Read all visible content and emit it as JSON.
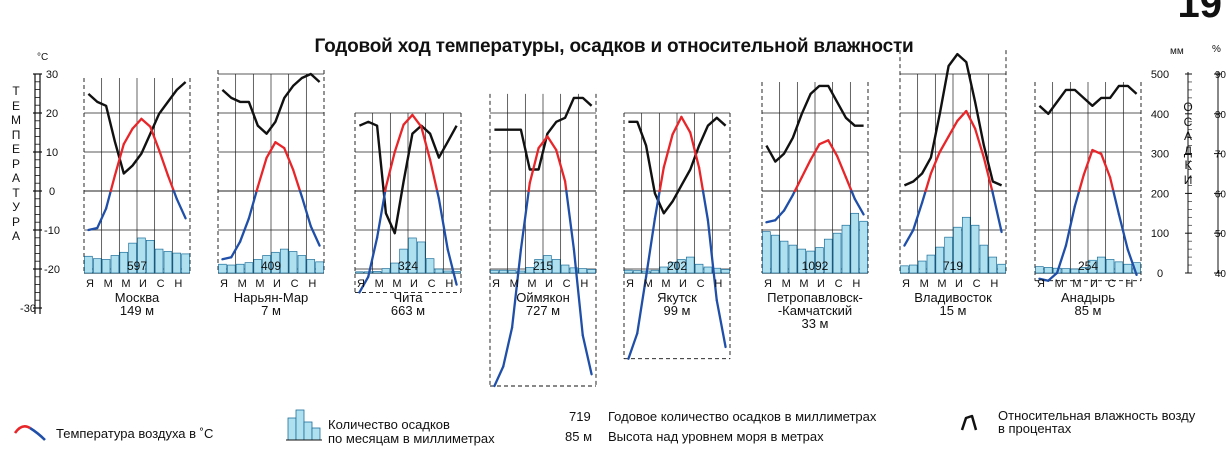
{
  "page_number": "19",
  "title": "Годовой ход температуры, осадков и относительной влажности",
  "left_axis": {
    "unit": "°C",
    "label": "ТЕМПЕРАТУРА",
    "ticks": [
      30,
      20,
      10,
      0,
      -10,
      -20,
      -30
    ]
  },
  "right_axis": {
    "precip_unit": "мм",
    "precip_label": "ОСАДКИ",
    "precip_ticks": [
      500,
      400,
      300,
      200,
      100,
      0
    ],
    "humidity_unit": "%",
    "humidity_ticks": [
      90,
      80,
      70,
      60,
      50,
      40
    ]
  },
  "month_letters": [
    "Я",
    "М",
    "М",
    "И",
    "С",
    "Н"
  ],
  "colors": {
    "temp_warm": "#e8262a",
    "temp_cold": "#1f4fa8",
    "humidity": "#111111",
    "precip_fill": "#aee0f0",
    "precip_stroke": "#1f6f9a"
  },
  "chart_data": {
    "type": "line",
    "x_unit": "month",
    "months": [
      1,
      2,
      3,
      4,
      5,
      6,
      7,
      8,
      9,
      10,
      11,
      12
    ],
    "stations": [
      {
        "name": "Москва",
        "elevation": "149 м",
        "annual_precip": "597",
        "temperature": [
          -10,
          -9.5,
          -4.5,
          4,
          12,
          16,
          18.5,
          16.5,
          10.5,
          4,
          -2,
          -7
        ],
        "precip_mm": [
          42,
          36,
          34,
          44,
          52,
          75,
          88,
          82,
          60,
          54,
          50,
          48
        ],
        "humidity": [
          85,
          83,
          82,
          73,
          65,
          67,
          70,
          75,
          80,
          83,
          86,
          88
        ]
      },
      {
        "name": "Нарьян-Мар",
        "elevation": "7 м",
        "annual_precip": "409",
        "temperature": [
          -17.5,
          -17,
          -13,
          -7,
          1,
          8.5,
          12.5,
          11,
          5.5,
          -1.5,
          -9,
          -14
        ],
        "precip_mm": [
          22,
          20,
          22,
          26,
          34,
          44,
          52,
          60,
          54,
          44,
          34,
          28
        ],
        "humidity": [
          86,
          84,
          83,
          83,
          77,
          75,
          78,
          84,
          87,
          89,
          90,
          88
        ]
      },
      {
        "name": "Чита",
        "elevation": "663 м",
        "annual_precip": "324",
        "temperature": [
          -26,
          -22,
          -12,
          1,
          10,
          17,
          19.5,
          16.5,
          8,
          -2,
          -15,
          -24
        ],
        "precip_mm": [
          3,
          3,
          4,
          11,
          25,
          60,
          88,
          78,
          36,
          10,
          5,
          4
        ],
        "humidity": [
          77,
          78,
          77,
          55,
          50,
          63,
          75,
          77,
          75,
          69,
          73,
          77
        ]
      },
      {
        "name": "Оймякон",
        "elevation": "727 м",
        "annual_precip": "215",
        "temperature": [
          -50,
          -45,
          -35,
          -15,
          2,
          11,
          14,
          10.5,
          2.5,
          -15,
          -37,
          -47
        ],
        "precip_mm": [
          7,
          7,
          6,
          5,
          14,
          34,
          44,
          34,
          20,
          13,
          11,
          9
        ],
        "humidity": [
          76,
          76,
          76,
          76,
          66,
          66,
          75,
          78,
          79,
          84,
          84,
          82
        ]
      },
      {
        "name": "Якутск",
        "elevation": "99 м",
        "annual_precip": "202",
        "temperature": [
          -43,
          -36.5,
          -22,
          -7,
          6,
          14.5,
          19,
          15,
          6,
          -7.5,
          -28,
          -40
        ],
        "precip_mm": [
          7,
          6,
          5,
          7,
          15,
          27,
          34,
          40,
          22,
          15,
          12,
          9
        ],
        "humidity": [
          78,
          78,
          72,
          60,
          55,
          58,
          62,
          66,
          72,
          77,
          79,
          77
        ]
      },
      {
        "name": "Петропавловск-\n-Камчатский",
        "elevation": "33 м",
        "annual_precip": "1092",
        "temperature": [
          -8,
          -7.5,
          -5,
          -1,
          3.5,
          8,
          12,
          13,
          9,
          3.5,
          -2,
          -6
        ],
        "precip_mm": [
          104,
          95,
          80,
          70,
          60,
          55,
          64,
          85,
          100,
          120,
          150,
          130
        ],
        "humidity": [
          72,
          68,
          70,
          74,
          80,
          85,
          87,
          87,
          83,
          79,
          77,
          77
        ]
      },
      {
        "name": "Владивосток",
        "elevation": "15 м",
        "annual_precip": "719",
        "temperature": [
          -14,
          -10,
          -3,
          4.5,
          10,
          14,
          18,
          20.5,
          16,
          8.5,
          -0.5,
          -10.5
        ],
        "precip_mm": [
          18,
          20,
          30,
          45,
          65,
          90,
          115,
          140,
          120,
          70,
          40,
          22
        ],
        "humidity": [
          62,
          63,
          65,
          69,
          80,
          92,
          95,
          93,
          83,
          72,
          63,
          62
        ]
      },
      {
        "name": "Анадырь",
        "elevation": "85 м",
        "annual_precip": "254",
        "temperature": [
          -22.5,
          -23,
          -21,
          -14,
          -4,
          4,
          10.5,
          9.5,
          3.5,
          -6,
          -15,
          -21.5
        ],
        "precip_mm": [
          16,
          14,
          12,
          11,
          10,
          14,
          32,
          40,
          34,
          28,
          22,
          26
        ],
        "humidity": [
          82,
          80,
          83,
          86,
          86,
          84,
          82,
          84,
          84,
          87,
          87,
          85
        ]
      }
    ]
  },
  "legend": {
    "temp_label": "Температура воздуха в ˚С",
    "precip_label_1": "Количество осадков",
    "precip_label_2": "по месяцам в миллиметрах",
    "annual_num": "719",
    "annual_text": "Годовое количество осадков в миллиметрах",
    "elev_num": "85 м",
    "elev_text": "Высота над уровнем моря в метрах",
    "humidity_label_1": "Относительная влажность возду",
    "humidity_label_2": "в процентах"
  }
}
